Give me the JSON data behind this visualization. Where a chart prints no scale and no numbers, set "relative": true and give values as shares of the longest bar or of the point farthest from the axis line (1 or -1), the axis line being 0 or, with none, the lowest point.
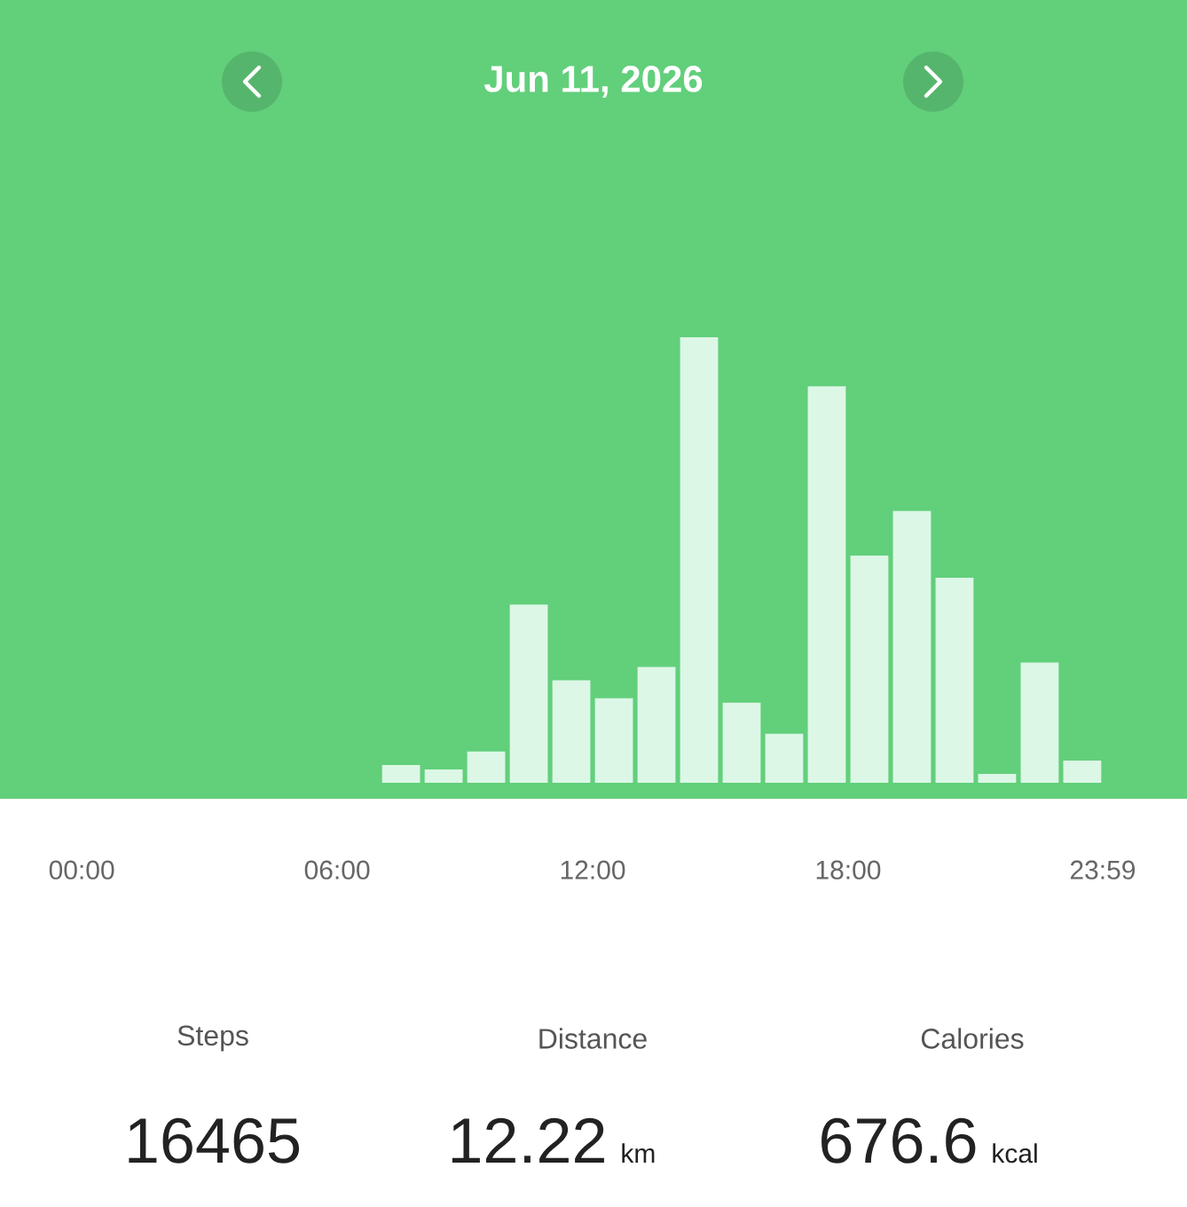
{
  "chart_data": {
    "type": "bar",
    "title": "Jun 11, 2026",
    "x": [
      0.5,
      1.5,
      2.5,
      3.5,
      4.5,
      5.5,
      6.5,
      7.5,
      8.5,
      9.5,
      10.5,
      11.5,
      12.5,
      13.5,
      14.5,
      15.5,
      16.5,
      17.5,
      18.5,
      19.5,
      20.5,
      21.5,
      22.5,
      23.5
    ],
    "values": [
      0,
      0,
      0,
      0,
      0,
      0,
      0,
      0.04,
      0.03,
      0.07,
      0.4,
      0.23,
      0.19,
      0.26,
      1,
      0.18,
      0.11,
      0.89,
      0.51,
      0.61,
      0.46,
      0.02,
      0.27,
      0.05
    ],
    "color": "#dcf7e6",
    "relative": true,
    "xlim": [
      -1.92,
      25.96
    ],
    "xticks": [
      {
        "value": 0,
        "label": "00:00"
      },
      {
        "value": 6,
        "label": "06:00"
      },
      {
        "value": 12,
        "label": "12:00"
      },
      {
        "value": 18,
        "label": "18:00"
      },
      {
        "value": 23.98,
        "label": "23:59"
      }
    ],
    "annotations": [
      "Steps",
      "Distance",
      "Calories",
      "16465",
      "12.22",
      "676.6",
      "km",
      "kcal"
    ]
  }
}
